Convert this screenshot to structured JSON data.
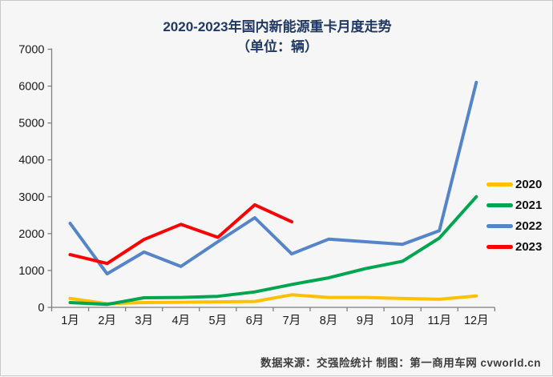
{
  "window": {
    "background_color": "#f6f6f6",
    "border_color": "#c9c9c9"
  },
  "title": {
    "line1": "2020-2023年国内新能源重卡月度走势",
    "line2": "（单位：辆）",
    "color": "#1f3864"
  },
  "footer": {
    "text": "数据来源：交强险统计  制图：第一商用车网 cvworld.cn"
  },
  "chart_data": {
    "type": "line",
    "title": "2020-2023年国内新能源重卡月度走势（单位：辆）",
    "categories": [
      "1月",
      "2月",
      "3月",
      "4月",
      "5月",
      "6月",
      "7月",
      "8月",
      "9月",
      "10月",
      "11月",
      "12月"
    ],
    "series": [
      {
        "name": "2020",
        "color": "#FFC000",
        "values": [
          240,
          100,
          130,
          140,
          150,
          160,
          340,
          270,
          270,
          240,
          220,
          310
        ]
      },
      {
        "name": "2021",
        "color": "#00A550",
        "values": [
          130,
          80,
          260,
          270,
          300,
          420,
          620,
          800,
          1050,
          1250,
          1880,
          3000
        ]
      },
      {
        "name": "2022",
        "color": "#5585C8",
        "values": [
          2280,
          910,
          1500,
          1110,
          1780,
          2430,
          1450,
          1850,
          1780,
          1710,
          2080,
          6100
        ]
      },
      {
        "name": "2023",
        "color": "#FF0000",
        "values": [
          1430,
          1190,
          1840,
          2250,
          1900,
          2780,
          2320
        ]
      }
    ],
    "y_axis": {
      "min": 0,
      "max": 7000,
      "step": 1000,
      "tick_labels": [
        "0",
        "1000",
        "2000",
        "3000",
        "4000",
        "5000",
        "6000",
        "7000"
      ]
    },
    "x_axis_label": "",
    "y_axis_label": "",
    "legend_position": "right",
    "grid": false,
    "axis_color": "#7f7f7f",
    "tick_label_color": "#1a1a1a"
  }
}
